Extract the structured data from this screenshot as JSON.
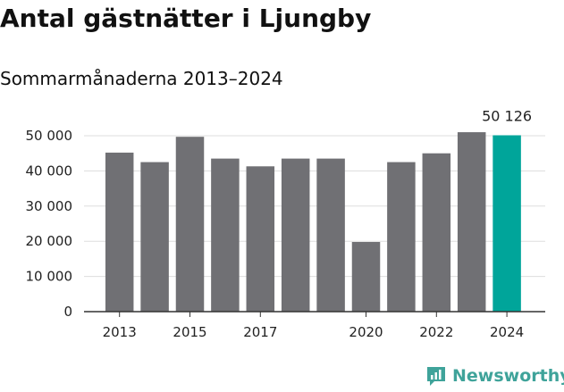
{
  "title": "Antal gästnätter i Ljungby",
  "subtitle": "Sommarmånaderna 2013–2024",
  "brand": {
    "name": "Newsworthy",
    "icon": "newsworthy-logo-icon",
    "color": "#3fa39a"
  },
  "colors": {
    "bar": "#707074",
    "highlight": "#00a59a",
    "grid": "#dddddd",
    "axis": "#333333"
  },
  "chart_data": {
    "type": "bar",
    "title": "Antal gästnätter i Ljungby",
    "subtitle": "Sommarmånaderna 2013–2024",
    "categories": [
      "2013",
      "2014",
      "2015",
      "2016",
      "2017",
      "2018",
      "2019",
      "2020",
      "2021",
      "2022",
      "2023",
      "2024"
    ],
    "values": [
      45200,
      42500,
      49700,
      43500,
      41300,
      43500,
      43500,
      19800,
      42500,
      45000,
      51000,
      50126
    ],
    "highlight_index": 11,
    "data_labels": [
      {
        "index": 11,
        "text": "50 126"
      }
    ],
    "x_tick_labels": [
      "2013",
      "2015",
      "2017",
      "2020",
      "2022",
      "2024"
    ],
    "y_ticks": [
      0,
      10000,
      20000,
      30000,
      40000,
      50000
    ],
    "y_tick_labels": [
      "0",
      "10 000",
      "20 000",
      "30 000",
      "40 000",
      "50 000"
    ],
    "ylim": [
      0,
      52000
    ],
    "xlabel": "",
    "ylabel": "",
    "grid": true,
    "legend": "none"
  }
}
